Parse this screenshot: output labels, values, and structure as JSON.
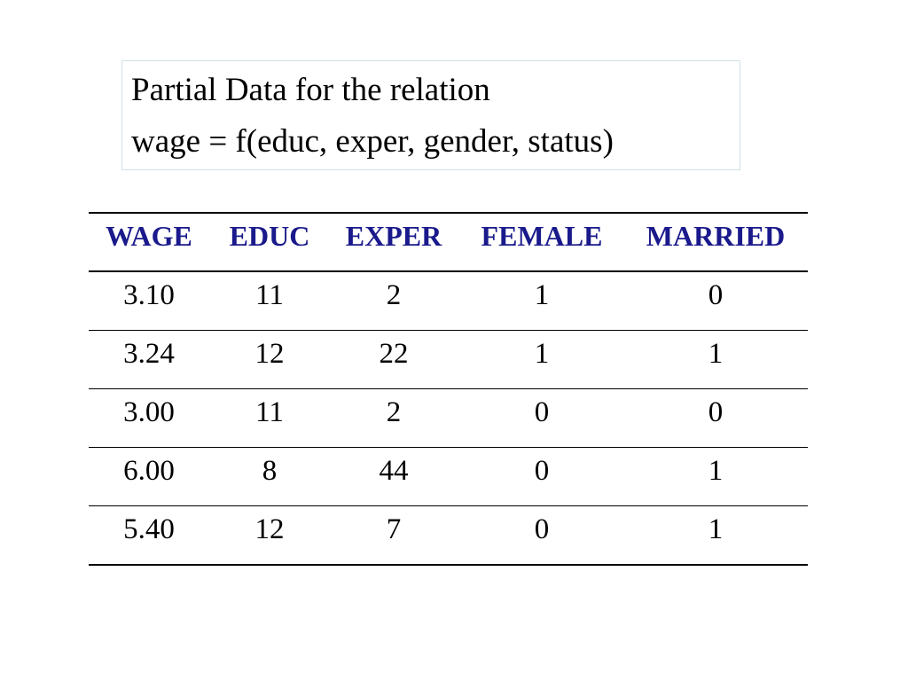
{
  "title": {
    "lines": [
      "Partial Data for the relation",
      "wage = f(educ, exper, gender, status)"
    ]
  },
  "table": {
    "header": [
      "WAGE",
      "EDUC",
      "EXPER",
      "FEMALE",
      "MARRIED"
    ],
    "rows": [
      [
        "3.10",
        "11",
        "2",
        "1",
        "0"
      ],
      [
        "3.24",
        "12",
        "22",
        "1",
        "1"
      ],
      [
        "3.00",
        "11",
        "2",
        "0",
        "0"
      ],
      [
        "6.00",
        "8",
        "44",
        "0",
        "1"
      ],
      [
        "5.40",
        "12",
        "7",
        "0",
        "1"
      ]
    ]
  }
}
